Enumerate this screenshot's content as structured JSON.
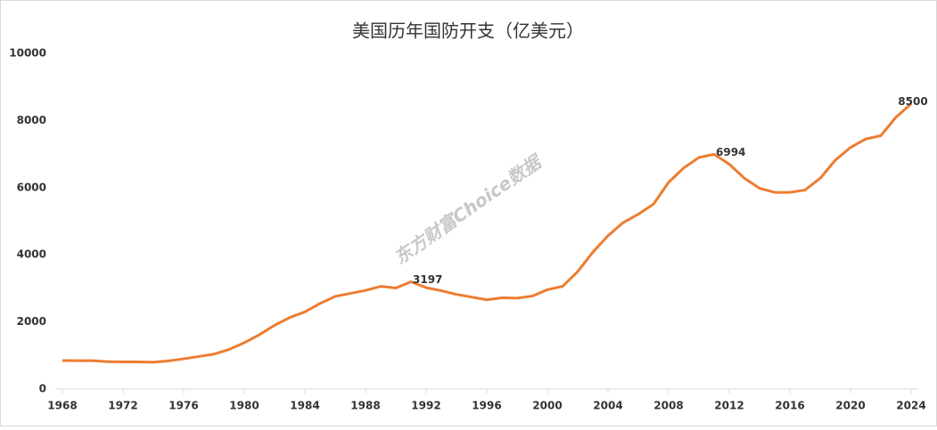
{
  "chart_data": {
    "type": "line",
    "title": "美国历年国防开支（亿美元）",
    "watermark": "东方财富Choice数据",
    "x": [
      1968,
      1969,
      1970,
      1971,
      1972,
      1973,
      1974,
      1975,
      1976,
      1977,
      1978,
      1979,
      1980,
      1981,
      1982,
      1983,
      1984,
      1985,
      1986,
      1987,
      1988,
      1989,
      1990,
      1991,
      1992,
      1993,
      1994,
      1995,
      1996,
      1997,
      1998,
      1999,
      2000,
      2001,
      2002,
      2003,
      2004,
      2005,
      2006,
      2007,
      2008,
      2009,
      2010,
      2011,
      2012,
      2013,
      2014,
      2015,
      2016,
      2017,
      2018,
      2019,
      2020,
      2021,
      2022,
      2023,
      2024
    ],
    "series": [
      {
        "name": "国防开支",
        "color": "#ed7d31",
        "values": [
          850,
          845,
          845,
          815,
          810,
          810,
          800,
          840,
          900,
          970,
          1040,
          1180,
          1380,
          1620,
          1900,
          2130,
          2300,
          2550,
          2760,
          2850,
          2940,
          3060,
          3010,
          3197,
          3020,
          2930,
          2820,
          2740,
          2660,
          2720,
          2710,
          2770,
          2960,
          3060,
          3500,
          4080,
          4570,
          4960,
          5210,
          5510,
          6160,
          6590,
          6900,
          6994,
          6700,
          6280,
          5980,
          5860,
          5860,
          5930,
          6280,
          6820,
          7200,
          7450,
          7550,
          8100,
          8500
        ]
      }
    ],
    "labeled_x": [
      1991,
      2011,
      2024
    ],
    "xlim": [
      1968,
      2024
    ],
    "xticks": [
      1968,
      1972,
      1976,
      1980,
      1984,
      1988,
      1992,
      1996,
      2000,
      2004,
      2008,
      2012,
      2016,
      2020,
      2024
    ],
    "ylim": [
      0,
      10000
    ],
    "yticks": [
      0,
      2000,
      4000,
      6000,
      8000,
      10000
    ],
    "grid": false
  }
}
